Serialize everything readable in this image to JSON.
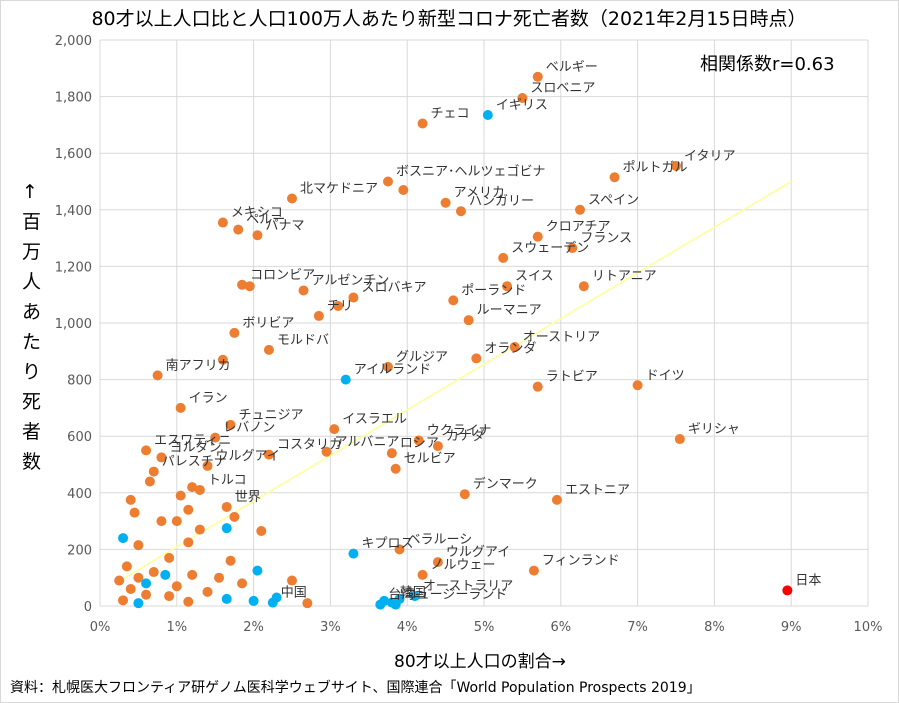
{
  "chart_data": {
    "type": "scatter",
    "title": "80才以上人口比と人口100万人あたり新型コロナ死亡者数（2021年2月15日時点）",
    "xlabel": "80才以上人口の割合→",
    "ylabel": "↑百万人あたり死者数",
    "xlim": [
      0,
      10
    ],
    "ylim": [
      0,
      2000
    ],
    "xticks": [
      "0%",
      "1%",
      "2%",
      "3%",
      "4%",
      "5%",
      "6%",
      "7%",
      "8%",
      "9%",
      "10%"
    ],
    "yticks": [
      "0",
      "200",
      "400",
      "600",
      "800",
      "1,000",
      "1,200",
      "1,400",
      "1,600",
      "1,800",
      "2,000"
    ],
    "correlation": "相関係数r=0.63",
    "source": "資料：札幌医大フロンティア研ゲノム医科学ウェブサイト、国際連合「World Population Prospects 2019」",
    "colors": {
      "default": "#ED7D31",
      "highlight": "#00B0F0",
      "japan": "#FF0000",
      "trend": "#FFFF99",
      "grid": "#D9D9D9"
    },
    "trendline": {
      "x": [
        0.2,
        9.0
      ],
      "y": [
        80,
        1500
      ]
    },
    "points": [
      {
        "label": "ベルギー",
        "x": 5.7,
        "y": 1870,
        "kind": "default"
      },
      {
        "label": "スロベニア",
        "x": 5.5,
        "y": 1795,
        "kind": "default"
      },
      {
        "label": "イギリス",
        "x": 5.05,
        "y": 1735,
        "kind": "highlight"
      },
      {
        "label": "チェコ",
        "x": 4.2,
        "y": 1705,
        "kind": "default"
      },
      {
        "label": "イタリア",
        "x": 7.5,
        "y": 1555,
        "kind": "default"
      },
      {
        "label": "ポルトガル",
        "x": 6.7,
        "y": 1515,
        "kind": "default"
      },
      {
        "label": "ボスニア･ヘルツェゴビナ",
        "x": 3.75,
        "y": 1500,
        "kind": "default"
      },
      {
        "label": "",
        "x": 3.95,
        "y": 1470,
        "kind": "default"
      },
      {
        "label": "北マケドニア",
        "x": 2.5,
        "y": 1440,
        "kind": "default"
      },
      {
        "label": "アメリカ",
        "x": 4.5,
        "y": 1425,
        "kind": "default"
      },
      {
        "label": "ハンガリー",
        "x": 4.7,
        "y": 1395,
        "kind": "default"
      },
      {
        "label": "スペイン",
        "x": 6.25,
        "y": 1400,
        "kind": "default"
      },
      {
        "label": "メキシコ",
        "x": 1.6,
        "y": 1355,
        "kind": "default"
      },
      {
        "label": "ペルー",
        "x": 1.8,
        "y": 1330,
        "kind": "default"
      },
      {
        "label": "パナマ",
        "x": 2.05,
        "y": 1310,
        "kind": "default"
      },
      {
        "label": "クロアチア",
        "x": 5.7,
        "y": 1305,
        "kind": "default"
      },
      {
        "label": "フランス",
        "x": 6.15,
        "y": 1265,
        "kind": "default"
      },
      {
        "label": "スウェーデン",
        "x": 5.25,
        "y": 1230,
        "kind": "default"
      },
      {
        "label": "コロンビア",
        "x": 1.85,
        "y": 1135,
        "kind": "default"
      },
      {
        "label": "",
        "x": 1.95,
        "y": 1130,
        "kind": "default"
      },
      {
        "label": "アルゼンチン",
        "x": 2.65,
        "y": 1115,
        "kind": "default"
      },
      {
        "label": "スイス",
        "x": 5.3,
        "y": 1130,
        "kind": "default"
      },
      {
        "label": "リトアニア",
        "x": 6.3,
        "y": 1130,
        "kind": "default"
      },
      {
        "label": "スロバキア",
        "x": 3.3,
        "y": 1090,
        "kind": "default"
      },
      {
        "label": "ポーランド",
        "x": 4.6,
        "y": 1080,
        "kind": "default"
      },
      {
        "label": "",
        "x": 3.1,
        "y": 1060,
        "kind": "default"
      },
      {
        "label": "チリ",
        "x": 2.85,
        "y": 1025,
        "kind": "default"
      },
      {
        "label": "ルーマニア",
        "x": 4.8,
        "y": 1010,
        "kind": "default"
      },
      {
        "label": "ボリビア",
        "x": 1.75,
        "y": 965,
        "kind": "default"
      },
      {
        "label": "オーストリア",
        "x": 5.4,
        "y": 915,
        "kind": "default"
      },
      {
        "label": "モルドバ",
        "x": 2.2,
        "y": 905,
        "kind": "default"
      },
      {
        "label": "オランダ",
        "x": 4.9,
        "y": 875,
        "kind": "default"
      },
      {
        "label": "",
        "x": 1.6,
        "y": 870,
        "kind": "default"
      },
      {
        "label": "グルジア",
        "x": 3.75,
        "y": 845,
        "kind": "default"
      },
      {
        "label": "南アフリカ",
        "x": 0.75,
        "y": 815,
        "kind": "default"
      },
      {
        "label": "アイルランド",
        "x": 3.2,
        "y": 800,
        "kind": "highlight"
      },
      {
        "label": "ドイツ",
        "x": 7.0,
        "y": 780,
        "kind": "default"
      },
      {
        "label": "ラトビア",
        "x": 5.7,
        "y": 775,
        "kind": "default"
      },
      {
        "label": "イラン",
        "x": 1.05,
        "y": 700,
        "kind": "default"
      },
      {
        "label": "チュニジア",
        "x": 1.7,
        "y": 640,
        "kind": "default"
      },
      {
        "label": "イスラエル",
        "x": 3.05,
        "y": 625,
        "kind": "default"
      },
      {
        "label": "ギリシャ",
        "x": 7.55,
        "y": 590,
        "kind": "default"
      },
      {
        "label": "レバノン",
        "x": 1.5,
        "y": 595,
        "kind": "default"
      },
      {
        "label": "ウクライナ",
        "x": 4.15,
        "y": 585,
        "kind": "default"
      },
      {
        "label": "カナダ",
        "x": 4.4,
        "y": 565,
        "kind": "default"
      },
      {
        "label": "アルバニア",
        "x": 2.95,
        "y": 545,
        "kind": "default"
      },
      {
        "label": "ロシア",
        "x": 3.8,
        "y": 540,
        "kind": "default"
      },
      {
        "label": "エスワティニ",
        "x": 0.6,
        "y": 550,
        "kind": "default"
      },
      {
        "label": "コスタリカ",
        "x": 2.2,
        "y": 535,
        "kind": "default"
      },
      {
        "label": "ヨルダン",
        "x": 0.8,
        "y": 525,
        "kind": "default"
      },
      {
        "label": "パレスチナ",
        "x": 0.7,
        "y": 475,
        "kind": "default"
      },
      {
        "label": "ウルグアイ",
        "x": 1.4,
        "y": 495,
        "kind": "default"
      },
      {
        "label": "セルビア",
        "x": 3.85,
        "y": 485,
        "kind": "default"
      },
      {
        "label": "",
        "x": 0.65,
        "y": 440,
        "kind": "default"
      },
      {
        "label": "",
        "x": 1.2,
        "y": 420,
        "kind": "default"
      },
      {
        "label": "トルコ",
        "x": 1.3,
        "y": 410,
        "kind": "default"
      },
      {
        "label": "デンマーク",
        "x": 4.75,
        "y": 395,
        "kind": "default"
      },
      {
        "label": "",
        "x": 1.05,
        "y": 390,
        "kind": "default"
      },
      {
        "label": "エストニア",
        "x": 5.95,
        "y": 375,
        "kind": "default"
      },
      {
        "label": "",
        "x": 0.4,
        "y": 375,
        "kind": "default"
      },
      {
        "label": "世界",
        "x": 1.65,
        "y": 350,
        "kind": "default"
      },
      {
        "label": "",
        "x": 1.15,
        "y": 340,
        "kind": "default"
      },
      {
        "label": "",
        "x": 0.45,
        "y": 330,
        "kind": "default"
      },
      {
        "label": "",
        "x": 0.8,
        "y": 300,
        "kind": "default"
      },
      {
        "label": "",
        "x": 1.0,
        "y": 300,
        "kind": "default"
      },
      {
        "label": "",
        "x": 1.75,
        "y": 315,
        "kind": "default"
      },
      {
        "label": "",
        "x": 1.65,
        "y": 275,
        "kind": "highlight"
      },
      {
        "label": "",
        "x": 1.3,
        "y": 270,
        "kind": "default"
      },
      {
        "label": "",
        "x": 2.1,
        "y": 265,
        "kind": "default"
      },
      {
        "label": "",
        "x": 0.3,
        "y": 240,
        "kind": "highlight"
      },
      {
        "label": "",
        "x": 1.15,
        "y": 225,
        "kind": "default"
      },
      {
        "label": "",
        "x": 0.5,
        "y": 215,
        "kind": "default"
      },
      {
        "label": "ベラルーシ",
        "x": 3.9,
        "y": 200,
        "kind": "default"
      },
      {
        "label": "キプロス",
        "x": 3.3,
        "y": 185,
        "kind": "highlight"
      },
      {
        "label": "ウルグアイ",
        "x": 4.4,
        "y": 155,
        "kind": "default"
      },
      {
        "label": "",
        "x": 1.7,
        "y": 160,
        "kind": "default"
      },
      {
        "label": "",
        "x": 0.9,
        "y": 170,
        "kind": "default"
      },
      {
        "label": "フィンランド",
        "x": 5.65,
        "y": 125,
        "kind": "default"
      },
      {
        "label": "",
        "x": 2.05,
        "y": 125,
        "kind": "highlight"
      },
      {
        "label": "",
        "x": 0.35,
        "y": 140,
        "kind": "default"
      },
      {
        "label": "",
        "x": 0.7,
        "y": 120,
        "kind": "default"
      },
      {
        "label": "ノルウェー",
        "x": 4.2,
        "y": 110,
        "kind": "default"
      },
      {
        "label": "",
        "x": 1.2,
        "y": 110,
        "kind": "default"
      },
      {
        "label": "",
        "x": 0.85,
        "y": 110,
        "kind": "highlight"
      },
      {
        "label": "",
        "x": 0.5,
        "y": 100,
        "kind": "default"
      },
      {
        "label": "",
        "x": 1.55,
        "y": 100,
        "kind": "default"
      },
      {
        "label": "",
        "x": 2.5,
        "y": 90,
        "kind": "default"
      },
      {
        "label": "",
        "x": 0.25,
        "y": 90,
        "kind": "default"
      },
      {
        "label": "",
        "x": 0.6,
        "y": 80,
        "kind": "highlight"
      },
      {
        "label": "",
        "x": 1.0,
        "y": 70,
        "kind": "default"
      },
      {
        "label": "",
        "x": 1.85,
        "y": 80,
        "kind": "default"
      },
      {
        "label": "",
        "x": 0.4,
        "y": 60,
        "kind": "default"
      },
      {
        "label": "日本",
        "x": 8.95,
        "y": 55,
        "kind": "japan"
      },
      {
        "label": "",
        "x": 1.4,
        "y": 50,
        "kind": "default"
      },
      {
        "label": "オーストラリア",
        "x": 4.1,
        "y": 35,
        "kind": "highlight"
      },
      {
        "label": "",
        "x": 0.6,
        "y": 40,
        "kind": "default"
      },
      {
        "label": "",
        "x": 0.9,
        "y": 35,
        "kind": "default"
      },
      {
        "label": "",
        "x": 2.3,
        "y": 30,
        "kind": "highlight"
      },
      {
        "label": "",
        "x": 1.65,
        "y": 25,
        "kind": "highlight"
      },
      {
        "label": "",
        "x": 3.9,
        "y": 25,
        "kind": "highlight"
      },
      {
        "label": "",
        "x": 0.3,
        "y": 20,
        "kind": "default"
      },
      {
        "label": "",
        "x": 2.0,
        "y": 18,
        "kind": "highlight"
      },
      {
        "label": "",
        "x": 3.7,
        "y": 18,
        "kind": "highlight"
      },
      {
        "label": "",
        "x": 1.15,
        "y": 15,
        "kind": "default"
      },
      {
        "label": "中国",
        "x": 2.25,
        "y": 12,
        "kind": "highlight"
      },
      {
        "label": "韓国",
        "x": 3.8,
        "y": 12,
        "kind": "highlight"
      },
      {
        "label": "",
        "x": 2.7,
        "y": 10,
        "kind": "default"
      },
      {
        "label": "",
        "x": 0.5,
        "y": 10,
        "kind": "highlight"
      },
      {
        "label": "台湾",
        "x": 3.65,
        "y": 5,
        "kind": "highlight"
      },
      {
        "label": "ニュージーランド",
        "x": 3.85,
        "y": 5,
        "kind": "highlight"
      }
    ]
  }
}
